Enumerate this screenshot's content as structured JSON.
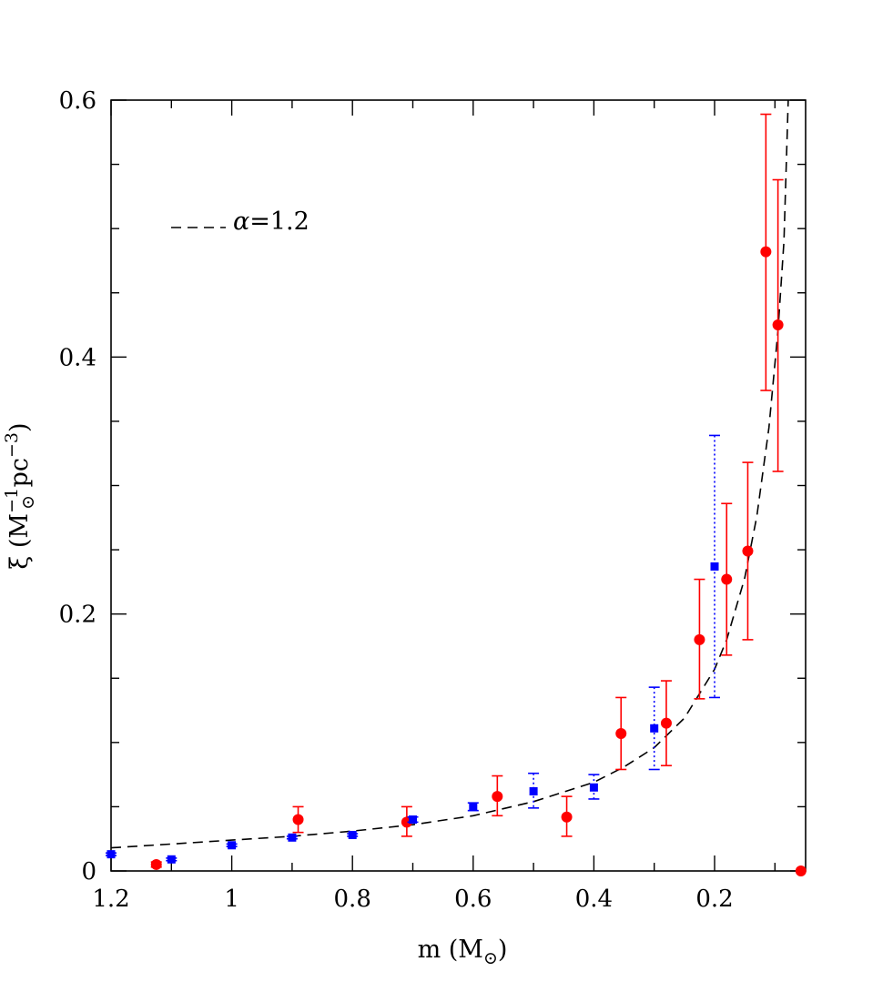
{
  "chart_data": {
    "type": "scatter",
    "title": "",
    "xlabel": "m (M",
    "xlabel_sub": "⊙",
    "xlabel_close": ")",
    "ylabel": "ξ (M",
    "ylabel_sup": "−1",
    "ylabel_sub": "⊙",
    "ylabel_rest": " pc",
    "ylabel_sup2": "−3",
    "ylabel_close": ")",
    "xlim": [
      1.2,
      0.05
    ],
    "ylim": [
      0,
      0.6
    ],
    "x_reversed": true,
    "x_ticks": [
      1.2,
      1,
      0.8,
      0.6,
      0.4,
      0.2
    ],
    "x_tick_labels": [
      "1.2",
      "1",
      "0.8",
      "0.6",
      "0.4",
      "0.2"
    ],
    "y_ticks": [
      0,
      0.2,
      0.4,
      0.6
    ],
    "y_tick_labels": [
      "0",
      "0.2",
      "0.4",
      "0.6"
    ],
    "grid": false,
    "legend": {
      "placement": "top-left",
      "label_prefix": "α",
      "label_eq": "=",
      "label_value": "1.2"
    },
    "curve": {
      "alpha": 1.2,
      "style": "dashed",
      "color": "#000000",
      "x_points": [
        1.2,
        1.1,
        1.0,
        0.9,
        0.8,
        0.7,
        0.6,
        0.5,
        0.4,
        0.35,
        0.3,
        0.25,
        0.2,
        0.18,
        0.15,
        0.13,
        0.11,
        0.095,
        0.085,
        0.078
      ],
      "y_points": [
        0.018,
        0.021,
        0.024,
        0.027,
        0.031,
        0.036,
        0.043,
        0.054,
        0.069,
        0.081,
        0.096,
        0.119,
        0.157,
        0.18,
        0.228,
        0.276,
        0.345,
        0.42,
        0.49,
        0.6
      ]
    },
    "series": [
      {
        "color": "#ff0000",
        "marker": "circle",
        "errorbar_style": "solid",
        "points": [
          {
            "x": 1.125,
            "y": 0.005,
            "lo": 0.003,
            "hi": 0.007
          },
          {
            "x": 0.89,
            "y": 0.04,
            "lo": 0.03,
            "hi": 0.05
          },
          {
            "x": 0.71,
            "y": 0.038,
            "lo": 0.027,
            "hi": 0.05
          },
          {
            "x": 0.56,
            "y": 0.058,
            "lo": 0.043,
            "hi": 0.074
          },
          {
            "x": 0.445,
            "y": 0.042,
            "lo": 0.027,
            "hi": 0.058
          },
          {
            "x": 0.355,
            "y": 0.107,
            "lo": 0.079,
            "hi": 0.135
          },
          {
            "x": 0.28,
            "y": 0.115,
            "lo": 0.082,
            "hi": 0.148
          },
          {
            "x": 0.225,
            "y": 0.18,
            "lo": 0.134,
            "hi": 0.227
          },
          {
            "x": 0.18,
            "y": 0.227,
            "lo": 0.168,
            "hi": 0.286
          },
          {
            "x": 0.145,
            "y": 0.249,
            "lo": 0.18,
            "hi": 0.318
          },
          {
            "x": 0.115,
            "y": 0.482,
            "lo": 0.374,
            "hi": 0.589
          },
          {
            "x": 0.095,
            "y": 0.425,
            "lo": 0.311,
            "hi": 0.538
          },
          {
            "x": 0.057,
            "y": 0.0,
            "lo": 0.0,
            "hi": 0.0
          }
        ]
      },
      {
        "color": "#0000ff",
        "marker": "square",
        "errorbar_style": "dotted",
        "points": [
          {
            "x": 1.2,
            "y": 0.013,
            "lo": 0.012,
            "hi": 0.014
          },
          {
            "x": 1.1,
            "y": 0.009,
            "lo": 0.008,
            "hi": 0.01
          },
          {
            "x": 1.0,
            "y": 0.02,
            "lo": 0.019,
            "hi": 0.021
          },
          {
            "x": 0.9,
            "y": 0.026,
            "lo": 0.025,
            "hi": 0.027
          },
          {
            "x": 0.8,
            "y": 0.028,
            "lo": 0.027,
            "hi": 0.029
          },
          {
            "x": 0.7,
            "y": 0.04,
            "lo": 0.038,
            "hi": 0.042
          },
          {
            "x": 0.6,
            "y": 0.05,
            "lo": 0.047,
            "hi": 0.053
          },
          {
            "x": 0.5,
            "y": 0.062,
            "lo": 0.049,
            "hi": 0.076
          },
          {
            "x": 0.4,
            "y": 0.065,
            "lo": 0.056,
            "hi": 0.075
          },
          {
            "x": 0.3,
            "y": 0.111,
            "lo": 0.079,
            "hi": 0.143
          },
          {
            "x": 0.2,
            "y": 0.237,
            "lo": 0.135,
            "hi": 0.339
          }
        ]
      }
    ]
  }
}
